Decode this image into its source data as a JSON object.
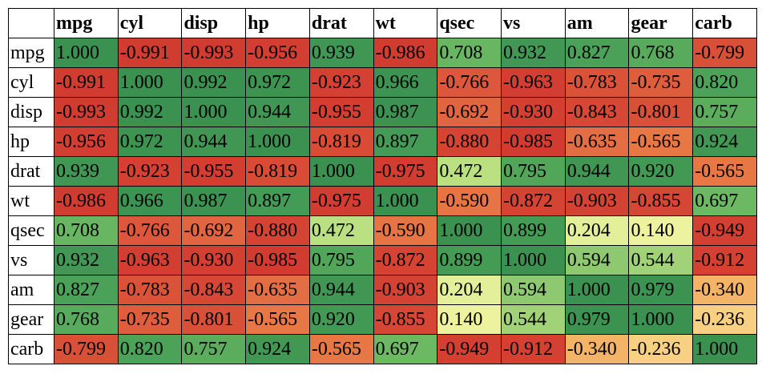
{
  "table": {
    "columns": [
      "mpg",
      "cyl",
      "disp",
      "hp",
      "drat",
      "wt",
      "qsec",
      "vs",
      "am",
      "gear",
      "carb"
    ],
    "rows": [
      {
        "label": "mpg",
        "cells": [
          "1.000",
          "-0.991",
          "-0.993",
          "-0.956",
          "0.939",
          "-0.986",
          "0.708",
          "0.932",
          "0.827",
          "0.768",
          "-0.799"
        ]
      },
      {
        "label": "cyl",
        "cells": [
          "-0.991",
          "1.000",
          "0.992",
          "0.972",
          "-0.923",
          "0.966",
          "-0.766",
          "-0.963",
          "-0.783",
          "-0.735",
          "0.820"
        ]
      },
      {
        "label": "disp",
        "cells": [
          "-0.993",
          "0.992",
          "1.000",
          "0.944",
          "-0.955",
          "0.987",
          "-0.692",
          "-0.930",
          "-0.843",
          "-0.801",
          "0.757"
        ]
      },
      {
        "label": "hp",
        "cells": [
          "-0.956",
          "0.972",
          "0.944",
          "1.000",
          "-0.819",
          "0.897",
          "-0.880",
          "-0.985",
          "-0.635",
          "-0.565",
          "0.924"
        ]
      },
      {
        "label": "drat",
        "cells": [
          "0.939",
          "-0.923",
          "-0.955",
          "-0.819",
          "1.000",
          "-0.975",
          "0.472",
          "0.795",
          "0.944",
          "0.920",
          "-0.565"
        ]
      },
      {
        "label": "wt",
        "cells": [
          "-0.986",
          "0.966",
          "0.987",
          "0.897",
          "-0.975",
          "1.000",
          "-0.590",
          "-0.872",
          "-0.903",
          "-0.855",
          "0.697"
        ]
      },
      {
        "label": "qsec",
        "cells": [
          "0.708",
          "-0.766",
          "-0.692",
          "-0.880",
          "0.472",
          "-0.590",
          "1.000",
          "0.899",
          "0.204",
          "0.140",
          "-0.949"
        ]
      },
      {
        "label": "vs",
        "cells": [
          "0.932",
          "-0.963",
          "-0.930",
          "-0.985",
          "0.795",
          "-0.872",
          "0.899",
          "1.000",
          "0.594",
          "0.544",
          "-0.912"
        ]
      },
      {
        "label": "am",
        "cells": [
          "0.827",
          "-0.783",
          "-0.843",
          "-0.635",
          "0.944",
          "-0.903",
          "0.204",
          "0.594",
          "1.000",
          "0.979",
          "-0.340"
        ]
      },
      {
        "label": "gear",
        "cells": [
          "0.768",
          "-0.735",
          "-0.801",
          "-0.565",
          "0.920",
          "-0.855",
          "0.140",
          "0.544",
          "0.979",
          "1.000",
          "-0.236"
        ]
      },
      {
        "label": "carb",
        "cells": [
          "-0.799",
          "0.820",
          "0.757",
          "0.924",
          "-0.565",
          "0.697",
          "-0.949",
          "-0.912",
          "-0.340",
          "-0.236",
          "1.000"
        ]
      }
    ]
  }
}
